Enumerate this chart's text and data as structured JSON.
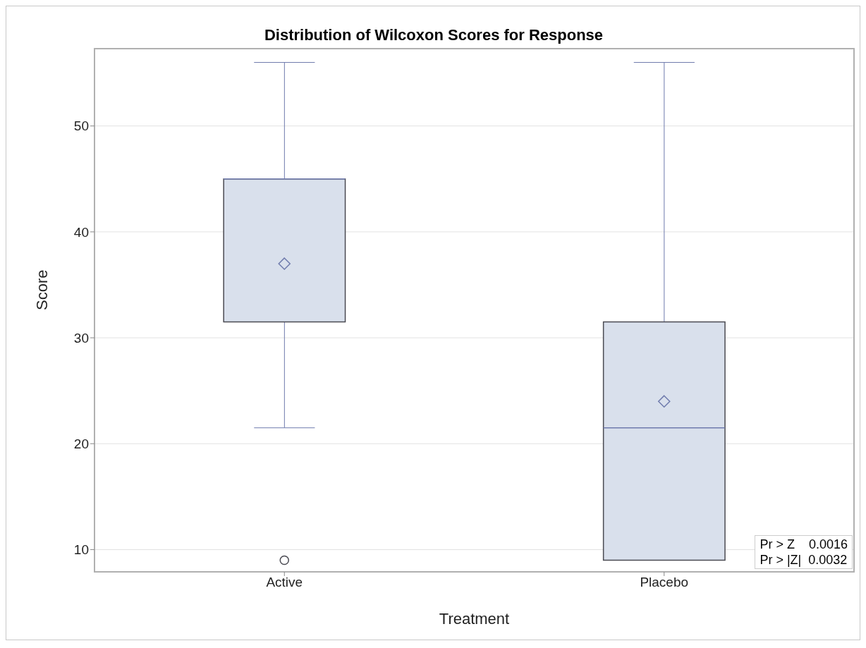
{
  "chart_data": {
    "type": "box",
    "title": "Distribution of Wilcoxon Scores for Response",
    "xlabel": "Treatment",
    "ylabel": "Score",
    "categories": [
      "Active",
      "Placebo"
    ],
    "series": [
      {
        "color": "#d9e0ec",
        "boxes": [
          {
            "low": 21.5,
            "q1": 31.5,
            "median": 45,
            "q3": 45,
            "high": 56,
            "mean": 37,
            "outliers": [
              9
            ]
          },
          {
            "low": 9,
            "q1": 9,
            "median": 21.5,
            "q3": 31.5,
            "high": 56,
            "mean": 24
          }
        ]
      }
    ],
    "ylim": [
      7.9,
      57.3
    ],
    "yticks": [
      10,
      20,
      30,
      40,
      50
    ],
    "grid": "y",
    "annotations": [
      "Pr > Z    0.0016",
      "Pr > |Z|  0.0032"
    ]
  }
}
